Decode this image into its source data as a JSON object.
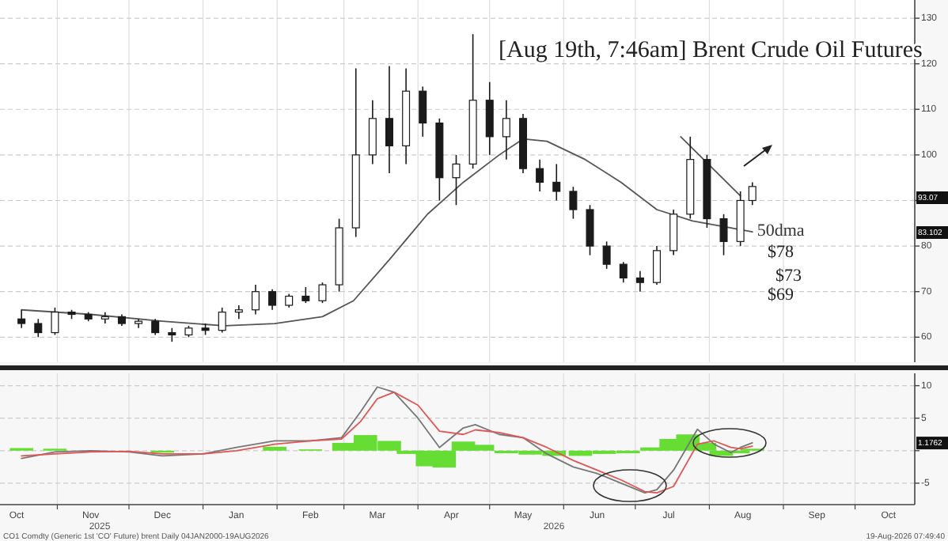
{
  "chart_data": [
    {
      "type": "candlestick",
      "title": "[Aug 19th, 7:46am] Brent Crude Oil Futures",
      "color": "#1a1a1a",
      "grid": true,
      "tick_labels": "y",
      "xlim": [
        "2025-10-08",
        "2026-10-26"
      ],
      "ylim": [
        54.5,
        134
      ],
      "yticks": [
        60,
        70,
        80,
        {
          "value": 90,
          "label": null
        },
        100,
        110,
        120,
        130
      ],
      "xticks": [
        {
          "value": "2025-11-01",
          "label": null
        },
        {
          "value": "2025-12-01",
          "label": null
        },
        {
          "value": "2026-01-01",
          "label": null
        },
        {
          "value": "2026-02-01",
          "label": null
        },
        {
          "value": "2026-03-01",
          "label": null
        },
        {
          "value": "2026-04-01",
          "label": null
        },
        {
          "value": "2026-05-01",
          "label": null
        },
        {
          "value": "2026-06-01",
          "label": null
        },
        {
          "value": "2026-07-01",
          "label": null
        },
        {
          "value": "2026-08-01",
          "label": null
        },
        {
          "value": "2026-09-01",
          "label": null
        },
        {
          "value": "2026-10-01",
          "label": null
        }
      ],
      "x": [
        "2025-10-17",
        "2025-10-24",
        "2025-10-31",
        "2025-11-07",
        "2025-11-14",
        "2025-11-21",
        "2025-11-28",
        "2025-12-05",
        "2025-12-12",
        "2025-12-19",
        "2025-12-26",
        "2026-01-02",
        "2026-01-09",
        "2026-01-16",
        "2026-01-23",
        "2026-01-30",
        "2026-02-06",
        "2026-02-13",
        "2026-02-20",
        "2026-02-27",
        "2026-03-06",
        "2026-03-13",
        "2026-03-20",
        "2026-03-27",
        "2026-04-03",
        "2026-04-10",
        "2026-04-17",
        "2026-04-24",
        "2026-05-01",
        "2026-05-08",
        "2026-05-15",
        "2026-05-22",
        "2026-05-29",
        "2026-06-05",
        "2026-06-12",
        "2026-06-19",
        "2026-06-26",
        "2026-07-03",
        "2026-07-10",
        "2026-07-17",
        "2026-07-24",
        "2026-07-31",
        "2026-08-07",
        "2026-08-14",
        "2026-08-19"
      ],
      "ohlc": [
        [
          64,
          66,
          62,
          63
        ],
        [
          63,
          64,
          60,
          61
        ],
        [
          61,
          66.5,
          60.5,
          65.5
        ],
        [
          65.5,
          66,
          64,
          65
        ],
        [
          65,
          65.5,
          63.5,
          64
        ],
        [
          64,
          65.5,
          63,
          64.5
        ],
        [
          64.5,
          65,
          62.5,
          63
        ],
        [
          63,
          64,
          62,
          63.5
        ],
        [
          63.5,
          64,
          60.5,
          61
        ],
        [
          61,
          62,
          59,
          60.5
        ],
        [
          60.5,
          62.5,
          60,
          62
        ],
        [
          62,
          63,
          60.5,
          61.5
        ],
        [
          61.5,
          66.5,
          61,
          65.5
        ],
        [
          65.5,
          67,
          64,
          66
        ],
        [
          66,
          71.5,
          65,
          70
        ],
        [
          70,
          70.5,
          66,
          67
        ],
        [
          67,
          69.5,
          66.5,
          69
        ],
        [
          69,
          71,
          67.5,
          68
        ],
        [
          68,
          72,
          67.5,
          71.5
        ],
        [
          71.5,
          86,
          70,
          84
        ],
        [
          84,
          119,
          82,
          100
        ],
        [
          100,
          112,
          98,
          108
        ],
        [
          108,
          119.5,
          96,
          102
        ],
        [
          102,
          119,
          98,
          114
        ],
        [
          114,
          115,
          104,
          107
        ],
        [
          107,
          108,
          90,
          95
        ],
        [
          95,
          100,
          89,
          98
        ],
        [
          98,
          126.5,
          97,
          112
        ],
        [
          112,
          116,
          100,
          104
        ],
        [
          104,
          112,
          99,
          108
        ],
        [
          108,
          109,
          96,
          97
        ],
        [
          97,
          99,
          92,
          94
        ],
        [
          94,
          98,
          90,
          92
        ],
        [
          92,
          93,
          86,
          88
        ],
        [
          88,
          89,
          78,
          80
        ],
        [
          80,
          81,
          75,
          76
        ],
        [
          76,
          76.5,
          72,
          73
        ],
        [
          73,
          74.5,
          70,
          72
        ],
        [
          72,
          80,
          71.5,
          79
        ],
        [
          79,
          88,
          78,
          87
        ],
        [
          87,
          104,
          86,
          99
        ],
        [
          99,
          100,
          84,
          86
        ],
        [
          86,
          87,
          78,
          81
        ],
        [
          81,
          92,
          80,
          90
        ],
        [
          90,
          94,
          89,
          93.07
        ]
      ],
      "series": [
        {
          "type": "line",
          "name": "50dma",
          "color": "#555555",
          "x": [
            "2025-10-17",
            "2025-11-15",
            "2025-12-15",
            "2026-01-10",
            "2026-01-31",
            "2026-02-20",
            "2026-03-05",
            "2026-03-20",
            "2026-04-05",
            "2026-04-20",
            "2026-05-05",
            "2026-05-15",
            "2026-05-25",
            "2026-06-10",
            "2026-06-25",
            "2026-07-10",
            "2026-07-25",
            "2026-08-10",
            "2026-08-19"
          ],
          "values": [
            66,
            65,
            63.5,
            62.5,
            63,
            64.5,
            68,
            77,
            87,
            94,
            100,
            103.5,
            103,
            99,
            94,
            88,
            85.5,
            84,
            83.1
          ]
        },
        {
          "type": "line",
          "color": "#555555",
          "x": [
            "2026-07-20",
            "2026-08-14"
          ],
          "values": [
            104,
            91
          ]
        }
      ],
      "annotations": [
        "$78",
        "$73",
        "$69",
        "93.07",
        "83.102"
      ]
    },
    {
      "type": "line",
      "grid": true,
      "xlim": [
        "2025-10-08",
        "2026-10-26"
      ],
      "ylim": [
        -8.3,
        11.9
      ],
      "yticks": [
        -5,
        {
          "value": 0,
          "label": null
        },
        5,
        10
      ],
      "xticks": [
        {
          "value": "2025-10-15",
          "label": "Oct"
        },
        {
          "value": "2025-11-01",
          "label": null
        },
        {
          "value": "2025-11-15",
          "label": "Nov"
        },
        {
          "value": "2025-12-01",
          "label": null
        },
        {
          "value": "2025-12-15",
          "label": "Dec"
        },
        {
          "value": "2026-01-01",
          "label": null
        },
        {
          "value": "2026-01-15",
          "label": "Jan"
        },
        {
          "value": "2026-02-01",
          "label": null
        },
        {
          "value": "2026-02-15",
          "label": "Feb"
        },
        {
          "value": "2026-03-01",
          "label": null
        },
        {
          "value": "2026-03-15",
          "label": "Mar"
        },
        {
          "value": "2026-04-01",
          "label": null
        },
        {
          "value": "2026-04-15",
          "label": "Apr"
        },
        {
          "value": "2026-05-01",
          "label": null
        },
        {
          "value": "2026-05-15",
          "label": "May"
        },
        {
          "value": "2026-06-01",
          "label": null
        },
        {
          "value": "2026-06-15",
          "label": "Jun"
        },
        {
          "value": "2026-07-01",
          "label": null
        },
        {
          "value": "2026-07-15",
          "label": "Jul"
        },
        {
          "value": "2026-08-01",
          "label": null
        },
        {
          "value": "2026-08-15",
          "label": "Aug"
        },
        {
          "value": "2026-09-01",
          "label": null
        },
        {
          "value": "2026-09-15",
          "label": "Sep"
        },
        {
          "value": "2026-10-01",
          "label": null
        },
        {
          "value": "2026-10-15",
          "label": "Oct"
        }
      ],
      "series": [
        {
          "type": "bar",
          "color": "#66dd33",
          "x": [
            "2025-10-17",
            "2025-10-31",
            "2025-12-01",
            "2025-12-15",
            "2026-01-01",
            "2026-01-31",
            "2026-02-15",
            "2026-03-01",
            "2026-03-10",
            "2026-03-20",
            "2026-03-28",
            "2026-04-05",
            "2026-04-12",
            "2026-04-20",
            "2026-04-28",
            "2026-05-08",
            "2026-05-18",
            "2026-05-28",
            "2026-06-08",
            "2026-06-18",
            "2026-06-28",
            "2026-07-08",
            "2026-07-16",
            "2026-07-23",
            "2026-07-30",
            "2026-08-06",
            "2026-08-13",
            "2026-08-19"
          ],
          "values": [
            0.4,
            0.3,
            0,
            -0.3,
            0,
            0.6,
            0.2,
            1.2,
            2.4,
            1.5,
            -0.5,
            -2.4,
            -2.6,
            1.4,
            0.9,
            -0.4,
            -0.6,
            -0.8,
            -0.8,
            -0.5,
            -0.4,
            0.5,
            1.8,
            2.5,
            1.2,
            -0.8,
            -0.4,
            0.3
          ]
        },
        {
          "type": "line",
          "color": "#777777",
          "x": [
            "2025-10-17",
            "2025-10-31",
            "2025-11-15",
            "2025-12-01",
            "2025-12-15",
            "2026-01-01",
            "2026-01-15",
            "2026-01-31",
            "2026-02-15",
            "2026-02-28",
            "2026-03-08",
            "2026-03-15",
            "2026-03-22",
            "2026-04-01",
            "2026-04-10",
            "2026-04-20",
            "2026-04-25",
            "2026-05-05",
            "2026-05-15",
            "2026-05-25",
            "2026-06-05",
            "2026-06-15",
            "2026-06-25",
            "2026-07-05",
            "2026-07-10",
            "2026-07-17",
            "2026-07-27",
            "2026-08-03",
            "2026-08-10",
            "2026-08-14",
            "2026-08-19"
          ],
          "values": [
            -1.2,
            -0.2,
            0,
            -0.2,
            -0.8,
            -0.5,
            0.5,
            1.5,
            1.5,
            2,
            6,
            9.8,
            9,
            5,
            0.5,
            3.5,
            4,
            2.5,
            2,
            -0.5,
            -2.5,
            -3.5,
            -5,
            -6.5,
            -6,
            -3,
            3.3,
            1,
            -0.3,
            0.5,
            1.2
          ]
        },
        {
          "type": "line",
          "color": "#e05555",
          "x": [
            "2025-10-17",
            "2025-10-31",
            "2025-11-15",
            "2025-12-01",
            "2025-12-15",
            "2026-01-01",
            "2026-01-15",
            "2026-01-31",
            "2026-02-15",
            "2026-02-28",
            "2026-03-08",
            "2026-03-15",
            "2026-03-22",
            "2026-04-01",
            "2026-04-10",
            "2026-04-20",
            "2026-04-25",
            "2026-05-05",
            "2026-05-15",
            "2026-05-25",
            "2026-06-05",
            "2026-06-15",
            "2026-06-25",
            "2026-07-05",
            "2026-07-10",
            "2026-07-17",
            "2026-07-27",
            "2026-08-03",
            "2026-08-10",
            "2026-08-14",
            "2026-08-19"
          ],
          "values": [
            -0.8,
            -0.5,
            -0.2,
            -0.1,
            -0.5,
            -0.5,
            0,
            1,
            1.5,
            1.8,
            4.5,
            8,
            9,
            7,
            3,
            2.5,
            3.2,
            2.8,
            2,
            0.5,
            -1.5,
            -3,
            -4.5,
            -6.3,
            -6.5,
            -5.5,
            1,
            1.5,
            0.5,
            0.3,
            0.7
          ]
        }
      ],
      "annotations": [
        "CO1 Comdty (Generic 1st 'CO' Future) brent Daily 04JAN2000-19AUG2026",
        "19-Aug-2026 07:49:40",
        "2025",
        "2026",
        {
          "text": "1.1762",
          "y": 1.1762
        }
      ]
    }
  ]
}
